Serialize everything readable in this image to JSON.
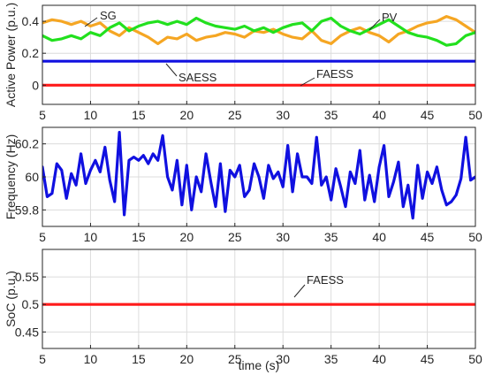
{
  "chart_data": [
    {
      "type": "line",
      "ylabel": "Active Power (p.u.)",
      "xlabel": "",
      "xlim": [
        5,
        50
      ],
      "ylim": [
        -0.12,
        0.5
      ],
      "xticks": [
        "5",
        "10",
        "15",
        "20",
        "25",
        "30",
        "35",
        "40",
        "45",
        "50"
      ],
      "yticks": [
        "0",
        "0.2",
        "0.4"
      ],
      "grid": true,
      "x": [
        5,
        6,
        7,
        8,
        9,
        10,
        11,
        12,
        13,
        14,
        15,
        16,
        17,
        18,
        19,
        20,
        21,
        22,
        23,
        24,
        25,
        26,
        27,
        28,
        29,
        30,
        31,
        32,
        33,
        34,
        35,
        36,
        37,
        38,
        39,
        40,
        41,
        42,
        43,
        44,
        45,
        46,
        47,
        48,
        49,
        50
      ],
      "series": [
        {
          "name": "SG",
          "color": "#f5a623",
          "values": [
            0.39,
            0.41,
            0.4,
            0.38,
            0.4,
            0.37,
            0.39,
            0.34,
            0.31,
            0.36,
            0.33,
            0.3,
            0.26,
            0.3,
            0.29,
            0.32,
            0.28,
            0.3,
            0.31,
            0.33,
            0.32,
            0.3,
            0.34,
            0.33,
            0.35,
            0.32,
            0.3,
            0.29,
            0.34,
            0.28,
            0.26,
            0.31,
            0.34,
            0.36,
            0.33,
            0.31,
            0.27,
            0.32,
            0.34,
            0.37,
            0.39,
            0.4,
            0.43,
            0.41,
            0.37,
            0.33
          ]
        },
        {
          "name": "PV",
          "color": "#22e01e",
          "values": [
            0.31,
            0.28,
            0.29,
            0.31,
            0.29,
            0.33,
            0.31,
            0.36,
            0.39,
            0.34,
            0.37,
            0.39,
            0.4,
            0.38,
            0.4,
            0.38,
            0.42,
            0.39,
            0.37,
            0.36,
            0.35,
            0.37,
            0.34,
            0.36,
            0.33,
            0.36,
            0.38,
            0.39,
            0.34,
            0.4,
            0.42,
            0.37,
            0.34,
            0.32,
            0.35,
            0.38,
            0.41,
            0.37,
            0.33,
            0.31,
            0.3,
            0.28,
            0.25,
            0.26,
            0.31,
            0.33
          ]
        },
        {
          "name": "SAESS",
          "color": "#1010e0",
          "values": [
            0.15,
            0.15,
            0.15,
            0.15,
            0.15,
            0.15,
            0.15,
            0.15,
            0.15,
            0.15,
            0.15,
            0.15,
            0.15,
            0.15,
            0.15,
            0.15,
            0.15,
            0.15,
            0.15,
            0.15,
            0.15,
            0.15,
            0.15,
            0.15,
            0.15,
            0.15,
            0.15,
            0.15,
            0.15,
            0.15,
            0.15,
            0.15,
            0.15,
            0.15,
            0.15,
            0.15,
            0.15,
            0.15,
            0.15,
            0.15,
            0.15,
            0.15,
            0.15,
            0.15,
            0.15,
            0.15
          ]
        },
        {
          "name": "FAESS",
          "color": "#ff1a1a",
          "values": [
            0,
            0,
            0,
            0,
            0,
            0,
            0,
            0,
            0,
            0,
            0,
            0,
            0,
            0,
            0,
            0,
            0,
            0,
            0,
            0,
            0,
            0,
            0,
            0,
            0,
            0,
            0,
            0,
            0,
            0,
            0,
            0,
            0,
            0,
            0,
            0,
            0,
            0,
            0,
            0,
            0,
            0,
            0,
            0,
            0,
            0
          ]
        }
      ],
      "annotations": [
        "SG",
        "PV",
        "SAESS",
        "FAESS"
      ]
    },
    {
      "type": "line",
      "ylabel": "Frequency (Hz)",
      "xlabel": "",
      "xlim": [
        5,
        50
      ],
      "ylim": [
        59.7,
        60.3
      ],
      "xticks": [
        "5",
        "10",
        "15",
        "20",
        "25",
        "30",
        "35",
        "40",
        "45",
        "50"
      ],
      "yticks": [
        "59.8",
        "60",
        "60.2"
      ],
      "grid": true,
      "x": [
        5,
        5.5,
        6,
        6.5,
        7,
        7.5,
        8,
        8.5,
        9,
        9.5,
        10,
        10.5,
        11,
        11.5,
        12,
        12.5,
        13,
        13.5,
        14,
        14.5,
        15,
        15.5,
        16,
        16.5,
        17,
        17.5,
        18,
        18.5,
        19,
        19.5,
        20,
        20.5,
        21,
        21.5,
        22,
        22.5,
        23,
        23.5,
        24,
        24.5,
        25,
        25.5,
        26,
        26.5,
        27,
        27.5,
        28,
        28.5,
        29,
        29.5,
        30,
        30.5,
        31,
        31.5,
        32,
        32.5,
        33,
        33.5,
        34,
        34.5,
        35,
        35.5,
        36,
        36.5,
        37,
        37.5,
        38,
        38.5,
        39,
        39.5,
        40,
        40.5,
        41,
        41.5,
        42,
        42.5,
        43,
        43.5,
        44,
        44.5,
        45,
        45.5,
        46,
        46.5,
        47,
        47.5,
        48,
        48.5,
        49,
        49.5,
        50
      ],
      "series": [
        {
          "name": "",
          "color": "#1010e0",
          "values": [
            60.06,
            59.88,
            59.9,
            60.08,
            60.04,
            59.87,
            60.02,
            59.95,
            60.14,
            59.96,
            60.04,
            60.1,
            60.03,
            60.18,
            59.98,
            59.85,
            60.27,
            59.77,
            60.1,
            60.12,
            60.1,
            60.13,
            60.08,
            60.14,
            60.1,
            60.25,
            60.0,
            59.92,
            60.1,
            59.83,
            60.07,
            59.8,
            60.0,
            59.91,
            60.14,
            59.97,
            59.82,
            60.08,
            59.79,
            60.04,
            60.0,
            60.07,
            59.88,
            59.92,
            60.08,
            60.0,
            59.87,
            60.07,
            59.99,
            60.03,
            59.94,
            60.19,
            59.91,
            60.14,
            60.0,
            60.0,
            59.96,
            60.24,
            59.95,
            60.0,
            59.86,
            60.05,
            59.94,
            59.82,
            60.03,
            59.96,
            60.16,
            59.86,
            60.01,
            59.85,
            60.06,
            60.19,
            59.88,
            59.97,
            60.09,
            59.82,
            59.95,
            59.75,
            60.07,
            59.87,
            60.03,
            59.96,
            60.06,
            59.92,
            59.83,
            59.85,
            59.89,
            59.99,
            60.24,
            59.98,
            60.0
          ]
        }
      ]
    },
    {
      "type": "line",
      "ylabel": "SoC (p.u.)",
      "xlabel": "time (s)",
      "xlim": [
        5,
        50
      ],
      "ylim": [
        0.42,
        0.6
      ],
      "xticks": [
        "5",
        "10",
        "15",
        "20",
        "25",
        "30",
        "35",
        "40",
        "45",
        "50"
      ],
      "yticks": [
        "0.45",
        "0.5",
        "0.55"
      ],
      "grid": true,
      "x": [
        5,
        50
      ],
      "series": [
        {
          "name": "FAESS",
          "color": "#ff1a1a",
          "values": [
            0.5,
            0.5
          ]
        }
      ],
      "annotations": [
        "FAESS"
      ]
    }
  ]
}
